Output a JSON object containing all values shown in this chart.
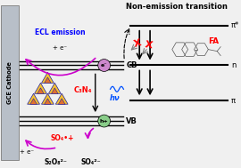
{
  "bg_color": "#f0f0f0",
  "title": "Non-emission transition",
  "ecl_label": "ECL emission",
  "gce_label": "GCE Cathode",
  "c3n4_label": "C₃N₄",
  "hv_label": "hν",
  "cb_label": "CB",
  "vb_label": "VB",
  "fa_label": "FA",
  "so4_rad_label": "SO₄•+",
  "s2o8_label": "S₂O₈²⁻",
  "so4_label": "SO₄²⁻",
  "e_label": "+ e⁻",
  "e2_label": "+ e⁻",
  "pi_star_label": "π*",
  "n_label": "n",
  "pi_label": "π",
  "e_circle": "e⁻",
  "h_circle": "h+"
}
